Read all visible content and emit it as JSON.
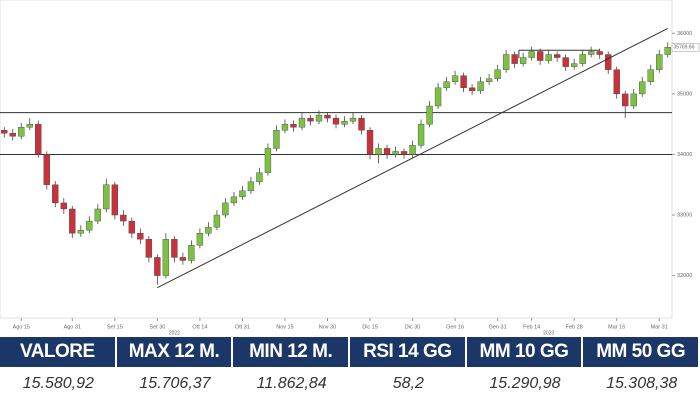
{
  "chart_data": {
    "type": "candlestick",
    "categories": [
      null,
      null,
      "Ago 15",
      null,
      null,
      null,
      null,
      null,
      "Ago 31",
      null,
      null,
      null,
      null,
      "Set 15",
      null,
      null,
      null,
      null,
      "Set 30",
      null,
      null,
      null,
      null,
      "Ott 14",
      null,
      null,
      null,
      null,
      "Ott 31",
      null,
      null,
      null,
      null,
      "Nov 15",
      null,
      null,
      null,
      null,
      "Nov 30",
      null,
      null,
      null,
      null,
      "Dic 15",
      null,
      null,
      null,
      null,
      "Dic 30",
      null,
      null,
      null,
      null,
      "Gen 16",
      null,
      null,
      null,
      null,
      "Gen 31",
      null,
      null,
      null,
      "Feb 14",
      null,
      null,
      null,
      null,
      "Feb 28",
      null,
      null,
      null,
      null,
      "Mar 15",
      null,
      null,
      null,
      null,
      "Mar 31",
      null
    ],
    "year_labels": [
      {
        "index": 20,
        "label": "2022"
      },
      {
        "index": 64,
        "label": "2023"
      }
    ],
    "open": [
      34400,
      34350,
      34300,
      34450,
      34500,
      34000,
      33500,
      33200,
      33100,
      32700,
      32750,
      32900,
      33100,
      33500,
      33000,
      32900,
      32700,
      32600,
      32300,
      32000,
      32600,
      32300,
      32250,
      32500,
      32700,
      32800,
      33000,
      33200,
      33300,
      33400,
      33550,
      33700,
      34100,
      34400,
      34500,
      34450,
      34600,
      34550,
      34650,
      34600,
      34500,
      34550,
      34600,
      34400,
      34000,
      34100,
      34000,
      34050,
      34000,
      34150,
      34500,
      34800,
      35100,
      35200,
      35300,
      35100,
      35050,
      35200,
      35250,
      35400,
      35650,
      35500,
      35600,
      35700,
      35550,
      35650,
      35600,
      35450,
      35500,
      35650,
      35700,
      35650,
      35400,
      35000,
      34800,
      35000,
      35200,
      35400,
      35650
    ],
    "high": [
      34450,
      34420,
      34520,
      34600,
      34560,
      34050,
      33560,
      33280,
      33150,
      32830,
      32980,
      33180,
      33600,
      33550,
      33080,
      32960,
      32780,
      32650,
      32350,
      32700,
      32650,
      32380,
      32580,
      32780,
      32880,
      33080,
      33280,
      33380,
      33480,
      33630,
      33780,
      34180,
      34480,
      34580,
      34560,
      34680,
      34650,
      34730,
      34700,
      34660,
      34630,
      34700,
      34650,
      34450,
      34180,
      34160,
      34130,
      34100,
      34230,
      34580,
      34880,
      35180,
      35280,
      35380,
      35350,
      35160,
      35280,
      35330,
      35480,
      35730,
      35700,
      35680,
      35780,
      35750,
      35730,
      35700,
      35650,
      35580,
      35730,
      35780,
      35750,
      35700,
      35450,
      35050,
      35080,
      35280,
      35480,
      35730,
      35850
    ],
    "low": [
      34280,
      34230,
      34250,
      34400,
      33950,
      33420,
      33130,
      33020,
      32620,
      32640,
      32700,
      32850,
      33050,
      32930,
      32820,
      32620,
      32520,
      32220,
      31850,
      31950,
      32220,
      32180,
      32200,
      32450,
      32650,
      32750,
      32950,
      33150,
      33250,
      33350,
      33500,
      33650,
      34050,
      34350,
      34380,
      34400,
      34480,
      34500,
      34530,
      34430,
      34450,
      34500,
      34330,
      33920,
      33850,
      33930,
      33950,
      33930,
      33950,
      34100,
      34450,
      34750,
      35050,
      35150,
      35030,
      34980,
      35000,
      35150,
      35200,
      35350,
      35430,
      35450,
      35550,
      35480,
      35500,
      35530,
      35380,
      35400,
      35450,
      35600,
      35580,
      35330,
      34920,
      34600,
      34750,
      34950,
      35150,
      35350,
      35600
    ],
    "close": [
      34350,
      34300,
      34450,
      34500,
      34000,
      33500,
      33200,
      33100,
      32700,
      32750,
      32900,
      33100,
      33500,
      33000,
      32900,
      32700,
      32600,
      32300,
      32000,
      32600,
      32300,
      32250,
      32500,
      32700,
      32800,
      33000,
      33200,
      33300,
      33400,
      33550,
      33700,
      34100,
      34400,
      34500,
      34450,
      34600,
      34550,
      34650,
      34600,
      34500,
      34550,
      34600,
      34400,
      34000,
      34100,
      34000,
      34050,
      34000,
      34150,
      34500,
      34800,
      35100,
      35200,
      35300,
      35100,
      35050,
      35200,
      35250,
      35400,
      35650,
      35500,
      35600,
      35700,
      35550,
      35650,
      35600,
      35450,
      35500,
      35650,
      35700,
      35650,
      35400,
      35000,
      34800,
      35000,
      35200,
      35400,
      35650,
      35770
    ],
    "up_color": "#7cc142",
    "down_color": "#c8323a",
    "ylim": [
      31300,
      36550
    ],
    "yticks": [
      32000,
      33000,
      34000,
      35000,
      36000
    ],
    "levels": [
      34690,
      34000
    ],
    "resistance": {
      "y": 35720,
      "from": 61,
      "to": 70
    },
    "trendline": {
      "from": [
        18,
        31800
      ],
      "to": [
        78,
        36080
      ]
    },
    "price_label": {
      "value": 35769.66,
      "label": "35769.66"
    }
  },
  "table": {
    "headers": [
      "VALORE",
      "MAX 12 M.",
      "MIN 12 M.",
      "RSI 14 GG",
      "MM 10 GG",
      "MM 50 GG"
    ],
    "values": [
      "15.580,92",
      "15.706,37",
      "11.862,84",
      "58,2",
      "15.290,98",
      "15.308,38"
    ]
  }
}
